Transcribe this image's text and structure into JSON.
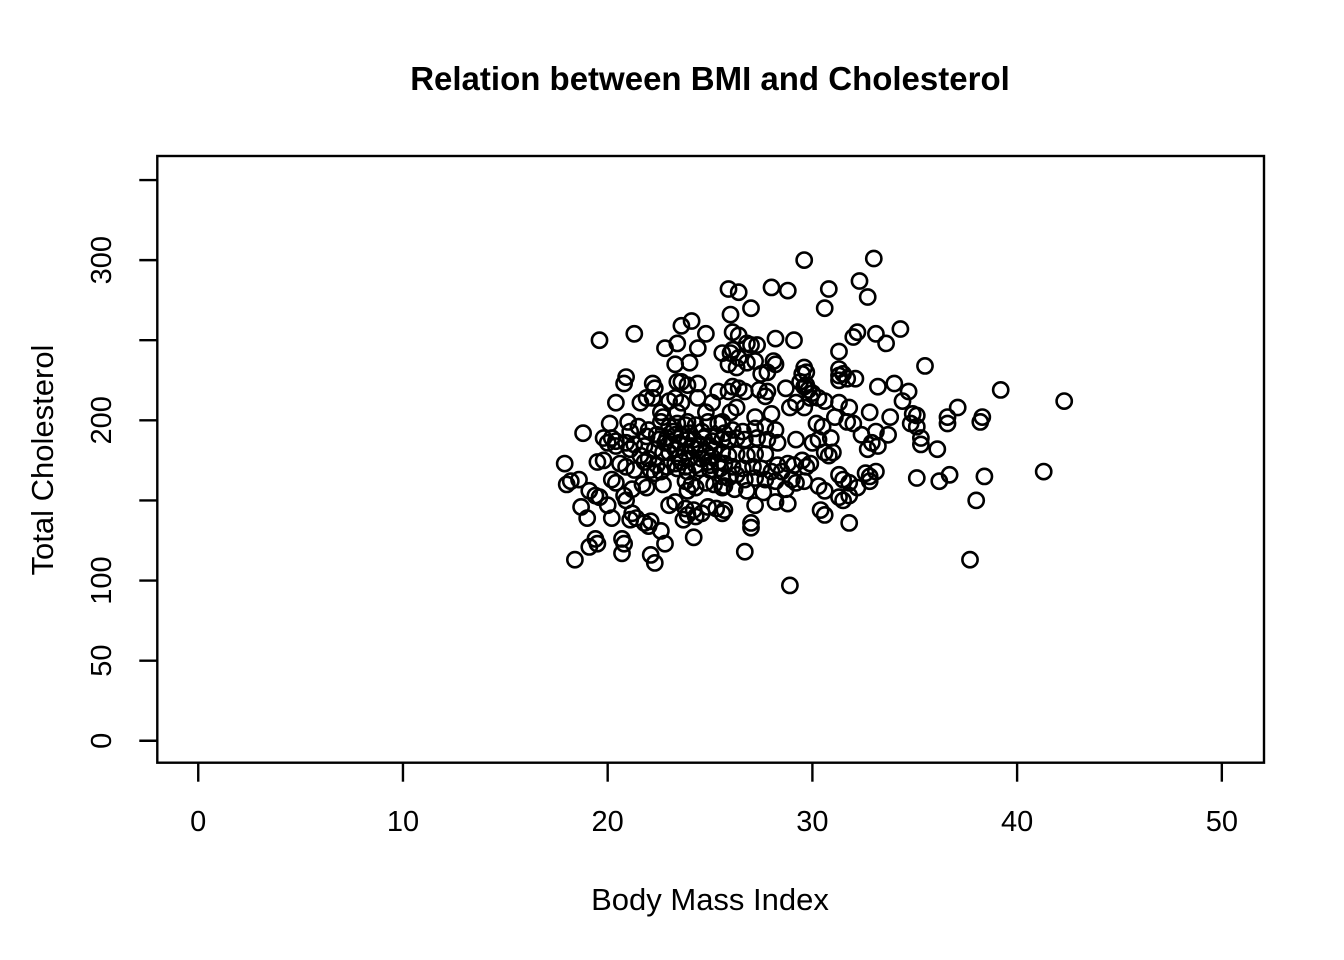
{
  "chart_data": {
    "type": "scatter",
    "title": "Relation between BMI and Cholesterol",
    "xlabel": "Body Mass Index",
    "ylabel": "Total Cholesterol",
    "xlim": [
      -2.0,
      52.06
    ],
    "ylim": [
      -13.7,
      365.0
    ],
    "grid": false,
    "legend": null,
    "x_ticks": {
      "values": [
        0,
        10,
        20,
        30,
        40,
        50
      ],
      "labels": [
        "0",
        "10",
        "20",
        "30",
        "40",
        "50"
      ]
    },
    "y_ticks": {
      "values": [
        0,
        50,
        100,
        150,
        200,
        250,
        300,
        350
      ],
      "labels": [
        "0",
        "50",
        "100",
        "",
        "200",
        "",
        "300",
        ""
      ]
    },
    "marker": {
      "shape": "open-circle",
      "radius_px": 7.6,
      "stroke_px": 2.6,
      "color": "#000000"
    },
    "axis_color": "#000000",
    "background": "#ffffff",
    "points": [
      [
        19.6,
        250
      ],
      [
        21.3,
        254
      ],
      [
        23.6,
        259
      ],
      [
        24.1,
        262
      ],
      [
        24.8,
        254
      ],
      [
        22.8,
        245
      ],
      [
        23.4,
        248
      ],
      [
        24.4,
        245
      ],
      [
        23.3,
        235
      ],
      [
        24.0,
        236
      ],
      [
        25.6,
        242
      ],
      [
        20.9,
        227
      ],
      [
        20.8,
        223
      ],
      [
        22.2,
        223
      ],
      [
        22.3,
        220
      ],
      [
        23.4,
        224
      ],
      [
        23.6,
        224
      ],
      [
        23.9,
        222
      ],
      [
        20.4,
        211
      ],
      [
        21.6,
        211
      ],
      [
        21.9,
        214
      ],
      [
        22.2,
        214
      ],
      [
        23.0,
        212
      ],
      [
        23.3,
        214
      ],
      [
        23.6,
        211
      ],
      [
        24.4,
        223
      ],
      [
        24.4,
        214
      ],
      [
        22.6,
        205
      ],
      [
        22.7,
        202
      ],
      [
        23.4,
        205
      ],
      [
        24.8,
        205
      ],
      [
        25.1,
        211
      ],
      [
        25.4,
        218
      ],
      [
        29.6,
        300
      ],
      [
        33.0,
        301
      ],
      [
        26.4,
        280
      ],
      [
        25.9,
        282
      ],
      [
        28.0,
        283
      ],
      [
        28.8,
        281
      ],
      [
        30.8,
        282
      ],
      [
        32.3,
        287
      ],
      [
        32.7,
        277
      ],
      [
        27.0,
        270
      ],
      [
        26.0,
        266
      ],
      [
        30.6,
        270
      ],
      [
        26.1,
        255
      ],
      [
        26.4,
        253
      ],
      [
        27.0,
        247
      ],
      [
        26.8,
        248
      ],
      [
        28.2,
        251
      ],
      [
        29.1,
        250
      ],
      [
        32.0,
        252
      ],
      [
        33.1,
        254
      ],
      [
        33.6,
        248
      ],
      [
        34.3,
        257
      ],
      [
        26.1,
        244
      ],
      [
        26.0,
        242
      ],
      [
        26.4,
        239
      ],
      [
        25.9,
        235
      ],
      [
        26.3,
        233
      ],
      [
        27.3,
        247
      ],
      [
        26.8,
        236
      ],
      [
        27.2,
        237
      ],
      [
        28.2,
        235
      ],
      [
        28.1,
        237
      ],
      [
        27.5,
        229
      ],
      [
        27.8,
        230
      ],
      [
        29.6,
        233
      ],
      [
        29.7,
        230
      ],
      [
        29.5,
        229
      ],
      [
        31.3,
        243
      ],
      [
        32.2,
        255
      ],
      [
        31.3,
        232
      ],
      [
        31.5,
        229
      ],
      [
        31.3,
        228
      ],
      [
        31.7,
        226
      ],
      [
        31.3,
        225
      ],
      [
        32.1,
        226
      ],
      [
        33.2,
        221
      ],
      [
        34.0,
        223
      ],
      [
        29.7,
        222
      ],
      [
        29.6,
        221
      ],
      [
        29.4,
        224
      ],
      [
        29.8,
        219
      ],
      [
        30.0,
        217
      ],
      [
        29.9,
        214
      ],
      [
        30.3,
        214
      ],
      [
        30.6,
        212
      ],
      [
        31.3,
        211
      ],
      [
        31.8,
        208
      ],
      [
        32.8,
        205
      ],
      [
        27.8,
        218
      ],
      [
        27.7,
        215
      ],
      [
        27.4,
        219
      ],
      [
        26.7,
        218
      ],
      [
        26.4,
        220
      ],
      [
        26.1,
        221
      ],
      [
        25.9,
        218
      ],
      [
        28.7,
        220
      ],
      [
        29.2,
        211
      ],
      [
        28.9,
        208
      ],
      [
        29.6,
        208
      ],
      [
        28.0,
        204
      ],
      [
        26.3,
        208
      ],
      [
        26.0,
        205
      ],
      [
        27.2,
        202
      ],
      [
        31.1,
        202
      ],
      [
        33.8,
        202
      ],
      [
        34.4,
        212
      ],
      [
        35.5,
        234
      ],
      [
        34.7,
        218
      ],
      [
        34.9,
        204
      ],
      [
        35.1,
        203
      ],
      [
        39.2,
        219
      ],
      [
        42.3,
        212
      ],
      [
        37.1,
        208
      ],
      [
        36.6,
        202
      ],
      [
        38.3,
        202
      ],
      [
        18.8,
        192
      ],
      [
        20.1,
        198
      ],
      [
        21.0,
        199
      ],
      [
        19.8,
        189
      ],
      [
        20.2,
        189
      ],
      [
        20.4,
        187
      ],
      [
        20.0,
        186
      ],
      [
        20.4,
        184
      ],
      [
        21.1,
        193
      ],
      [
        22.0,
        194
      ],
      [
        22.6,
        199
      ],
      [
        23.0,
        196
      ],
      [
        23.4,
        198
      ],
      [
        23.8,
        197
      ],
      [
        23.9,
        199
      ],
      [
        24.3,
        197
      ],
      [
        24.9,
        199
      ],
      [
        25.4,
        198
      ],
      [
        25.6,
        199
      ],
      [
        23.3,
        191
      ],
      [
        23.6,
        190
      ],
      [
        22.9,
        189
      ],
      [
        23.9,
        188
      ],
      [
        24.7,
        189
      ],
      [
        25.1,
        187
      ],
      [
        25.6,
        188
      ],
      [
        20.9,
        186
      ],
      [
        21.3,
        185
      ],
      [
        21.1,
        182
      ],
      [
        21.8,
        184
      ],
      [
        22.3,
        182
      ],
      [
        22.7,
        180
      ],
      [
        23.3,
        182
      ],
      [
        23.8,
        180
      ],
      [
        24.3,
        182
      ],
      [
        24.8,
        180
      ],
      [
        25.2,
        182
      ],
      [
        25.6,
        180
      ],
      [
        17.9,
        173
      ],
      [
        18.0,
        160
      ],
      [
        18.2,
        162
      ],
      [
        18.6,
        163
      ],
      [
        19.5,
        174
      ],
      [
        19.8,
        175
      ],
      [
        20.6,
        173
      ],
      [
        20.9,
        171
      ],
      [
        21.3,
        169
      ],
      [
        21.8,
        174
      ],
      [
        22.1,
        169
      ],
      [
        22.3,
        167
      ],
      [
        22.6,
        168
      ],
      [
        23.3,
        173
      ],
      [
        23.8,
        171
      ],
      [
        23.9,
        168
      ],
      [
        24.5,
        170
      ],
      [
        25.0,
        169
      ],
      [
        25.5,
        170
      ],
      [
        25.6,
        165
      ],
      [
        19.1,
        156
      ],
      [
        19.4,
        153
      ],
      [
        19.6,
        152
      ],
      [
        20.2,
        163
      ],
      [
        20.4,
        161
      ],
      [
        20.8,
        153
      ],
      [
        21.2,
        157
      ],
      [
        21.7,
        160
      ],
      [
        21.9,
        158
      ],
      [
        20.9,
        150
      ],
      [
        23.8,
        162
      ],
      [
        24.1,
        160
      ],
      [
        24.3,
        158
      ],
      [
        23.9,
        156
      ],
      [
        24.8,
        161
      ],
      [
        25.2,
        160
      ],
      [
        25.6,
        158
      ],
      [
        22.7,
        160
      ],
      [
        18.7,
        146
      ],
      [
        19.0,
        139
      ],
      [
        20.2,
        139
      ],
      [
        21.2,
        142
      ],
      [
        21.4,
        139
      ],
      [
        21.1,
        138
      ],
      [
        21.8,
        136
      ],
      [
        22.1,
        137
      ],
      [
        22.0,
        134
      ],
      [
        22.6,
        131
      ],
      [
        19.4,
        126
      ],
      [
        19.5,
        123
      ],
      [
        19.1,
        121
      ],
      [
        20.7,
        126
      ],
      [
        20.8,
        123
      ],
      [
        18.4,
        113
      ],
      [
        20.7,
        117
      ],
      [
        22.8,
        123
      ],
      [
        22.1,
        116
      ],
      [
        22.3,
        111
      ],
      [
        24.2,
        127
      ],
      [
        23.8,
        145
      ],
      [
        24.2,
        144
      ],
      [
        23.9,
        141
      ],
      [
        24.3,
        140
      ],
      [
        24.6,
        142
      ],
      [
        23.7,
        138
      ],
      [
        24.9,
        146
      ],
      [
        25.3,
        145
      ],
      [
        25.6,
        142
      ],
      [
        23.0,
        147
      ],
      [
        23.3,
        149
      ],
      [
        20.0,
        147
      ],
      [
        26.6,
        193
      ],
      [
        27.2,
        195
      ],
      [
        27.7,
        196
      ],
      [
        28.2,
        194
      ],
      [
        26.1,
        194
      ],
      [
        25.7,
        192
      ],
      [
        26.3,
        189
      ],
      [
        25.9,
        188
      ],
      [
        26.7,
        188
      ],
      [
        27.3,
        189
      ],
      [
        27.8,
        188
      ],
      [
        28.3,
        186
      ],
      [
        29.2,
        188
      ],
      [
        30.0,
        186
      ],
      [
        30.3,
        188
      ],
      [
        30.9,
        189
      ],
      [
        32.4,
        191
      ],
      [
        33.1,
        193
      ],
      [
        33.7,
        191
      ],
      [
        30.2,
        198
      ],
      [
        30.5,
        196
      ],
      [
        31.7,
        199
      ],
      [
        32.0,
        198
      ],
      [
        32.9,
        186
      ],
      [
        33.2,
        184
      ],
      [
        32.7,
        182
      ],
      [
        30.6,
        180
      ],
      [
        30.8,
        178
      ],
      [
        31.0,
        180
      ],
      [
        29.5,
        175
      ],
      [
        29.9,
        173
      ],
      [
        29.7,
        171
      ],
      [
        28.8,
        173
      ],
      [
        29.1,
        172
      ],
      [
        28.3,
        172
      ],
      [
        28.5,
        168
      ],
      [
        28.0,
        168
      ],
      [
        27.7,
        179
      ],
      [
        27.2,
        179
      ],
      [
        26.8,
        178
      ],
      [
        26.3,
        179
      ],
      [
        25.9,
        178
      ],
      [
        25.7,
        173
      ],
      [
        26.1,
        171
      ],
      [
        26.6,
        170
      ],
      [
        27.1,
        171
      ],
      [
        27.5,
        170
      ],
      [
        26.3,
        166
      ],
      [
        25.9,
        164
      ],
      [
        26.7,
        163
      ],
      [
        27.2,
        164
      ],
      [
        27.7,
        163
      ],
      [
        28.2,
        162
      ],
      [
        25.7,
        159
      ],
      [
        26.2,
        157
      ],
      [
        26.8,
        156
      ],
      [
        27.6,
        155
      ],
      [
        29.0,
        163
      ],
      [
        29.2,
        161
      ],
      [
        29.6,
        162
      ],
      [
        30.3,
        159
      ],
      [
        30.6,
        156
      ],
      [
        31.3,
        166
      ],
      [
        31.5,
        163
      ],
      [
        31.8,
        161
      ],
      [
        31.3,
        152
      ],
      [
        31.5,
        150
      ],
      [
        31.8,
        153
      ],
      [
        32.2,
        158
      ],
      [
        32.6,
        167
      ],
      [
        32.8,
        165
      ],
      [
        33.1,
        168
      ],
      [
        32.8,
        162
      ],
      [
        28.7,
        157
      ],
      [
        28.2,
        149
      ],
      [
        28.8,
        148
      ],
      [
        27.2,
        147
      ],
      [
        25.7,
        144
      ],
      [
        30.4,
        144
      ],
      [
        30.6,
        141
      ],
      [
        27.0,
        136
      ],
      [
        27.0,
        133
      ],
      [
        31.8,
        136
      ],
      [
        26.7,
        118
      ],
      [
        28.9,
        97
      ],
      [
        34.8,
        198
      ],
      [
        35.1,
        196
      ],
      [
        36.6,
        198
      ],
      [
        38.2,
        199
      ],
      [
        35.3,
        189
      ],
      [
        35.3,
        185
      ],
      [
        36.1,
        182
      ],
      [
        35.1,
        164
      ],
      [
        36.2,
        162
      ],
      [
        36.7,
        166
      ],
      [
        38.4,
        165
      ],
      [
        41.3,
        168
      ],
      [
        38.0,
        150
      ],
      [
        37.7,
        113
      ],
      [
        21.5,
        196
      ],
      [
        22.4,
        191
      ],
      [
        21.9,
        190
      ],
      [
        22.8,
        186
      ],
      [
        23.1,
        185
      ],
      [
        23.5,
        186
      ],
      [
        24.1,
        184
      ],
      [
        24.5,
        185
      ],
      [
        25.0,
        184
      ],
      [
        25.3,
        190
      ],
      [
        24.6,
        193
      ],
      [
        24.0,
        192
      ],
      [
        23.2,
        193
      ],
      [
        22.5,
        188
      ],
      [
        23.0,
        180
      ],
      [
        23.5,
        177
      ],
      [
        24.0,
        176
      ],
      [
        24.6,
        176
      ],
      [
        25.1,
        177
      ],
      [
        24.2,
        188
      ],
      [
        21.6,
        178
      ],
      [
        22.0,
        176
      ],
      [
        22.4,
        172
      ],
      [
        24.9,
        174
      ],
      [
        25.4,
        174
      ],
      [
        23.6,
        174
      ],
      [
        24.3,
        172
      ],
      [
        25.0,
        172
      ],
      [
        22.9,
        171
      ],
      [
        23.4,
        170
      ]
    ]
  }
}
